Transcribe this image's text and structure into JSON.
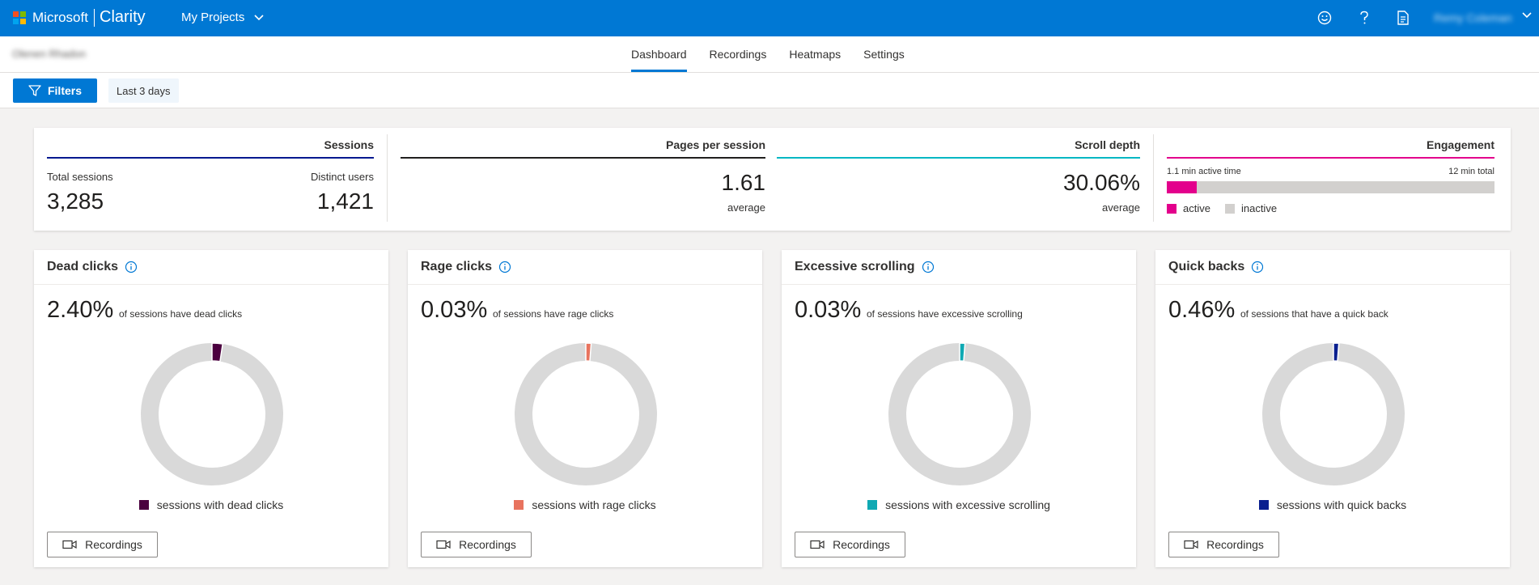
{
  "topbar": {
    "brand_ms": "Microsoft",
    "brand_app": "Clarity",
    "projects_label": "My Projects",
    "user_name": "Remy Coleman",
    "logo_colors": [
      "#f25022",
      "#7fba00",
      "#00a4ef",
      "#ffb900"
    ],
    "icons": [
      "smiley-icon",
      "help-icon",
      "document-icon"
    ]
  },
  "subnav": {
    "project_name": "Olenen Rhadon",
    "tabs": [
      "Dashboard",
      "Recordings",
      "Heatmaps",
      "Settings"
    ],
    "active_tab": "Dashboard"
  },
  "filterbar": {
    "filters_label": "Filters",
    "range_label": "Last 3 days"
  },
  "summary": {
    "sessions": {
      "title": "Sessions",
      "total_label": "Total sessions",
      "total_value": "3,285",
      "distinct_label": "Distinct users",
      "distinct_value": "1,421",
      "color": "#00188f"
    },
    "pages": {
      "title": "Pages per session",
      "value": "1.61",
      "sub": "average",
      "color": "#201f1e"
    },
    "scroll": {
      "title": "Scroll depth",
      "value": "30.06%",
      "sub": "average",
      "color": "#00b7c3"
    },
    "engagement": {
      "title": "Engagement",
      "active_label": "1.1 min active time",
      "total_label": "12 min total",
      "active_fraction": 0.0917,
      "legend_active": "active",
      "legend_inactive": "inactive",
      "active_color": "#e3008c",
      "inactive_color": "#d2d0ce"
    }
  },
  "cards": [
    {
      "title": "Dead clicks",
      "percent": "2.40%",
      "fraction": 0.024,
      "desc": "of sessions have dead clicks",
      "legend": "sessions with dead clicks",
      "color": "#4b003f",
      "button": "Recordings"
    },
    {
      "title": "Rage clicks",
      "percent": "0.03%",
      "fraction": 0.0003,
      "desc": "of sessions have rage clicks",
      "legend": "sessions with rage clicks",
      "color": "#e8735e",
      "button": "Recordings"
    },
    {
      "title": "Excessive scrolling",
      "percent": "0.03%",
      "fraction": 0.0003,
      "desc": "of sessions have excessive scrolling",
      "legend": "sessions with excessive scrolling",
      "color": "#0fa9b3",
      "button": "Recordings"
    },
    {
      "title": "Quick backs",
      "percent": "0.46%",
      "fraction": 0.0046,
      "desc": "of sessions that have a quick back",
      "legend": "sessions with quick backs",
      "color": "#0a1f8f",
      "button": "Recordings"
    }
  ]
}
